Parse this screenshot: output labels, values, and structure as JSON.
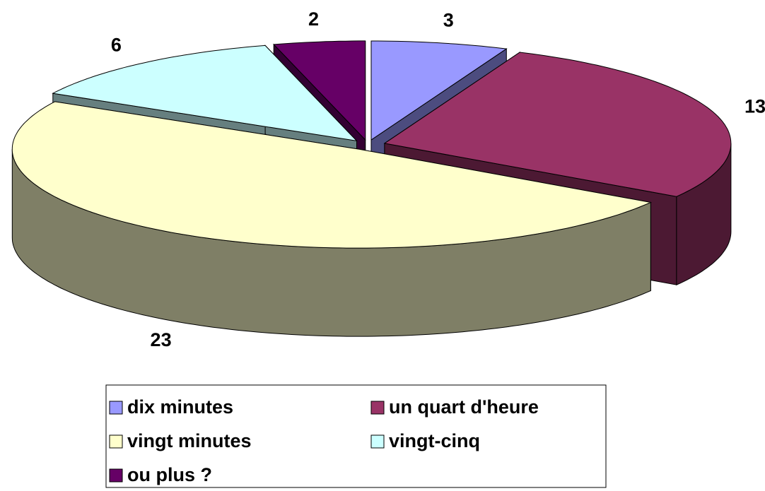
{
  "chart_data": {
    "type": "pie",
    "categories": [
      "dix minutes",
      "un quart d'heure",
      "vingt minutes",
      "vingt-cinq",
      "ou plus ?"
    ],
    "values": [
      3,
      13,
      23,
      6,
      2
    ],
    "colors": [
      "#9999ff",
      "#993366",
      "#ffffcc",
      "#ccffff",
      "#660066"
    ],
    "legend": "bottom"
  }
}
